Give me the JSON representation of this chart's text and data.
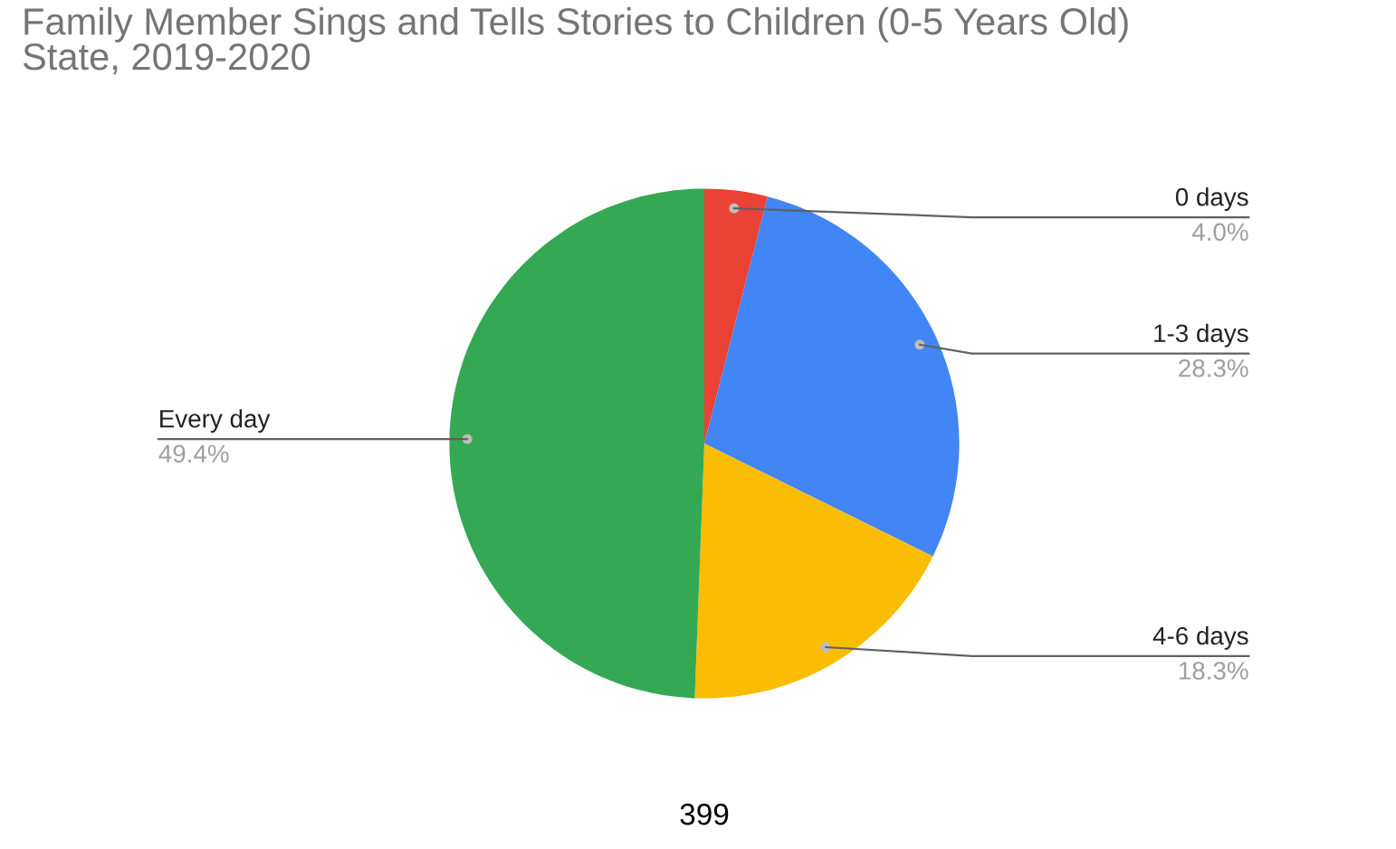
{
  "chart_data": {
    "type": "pie",
    "title": "Family Member Sings and Tells Stories to Children (0-5 Years Old)\nState, 2019-2020",
    "categories": [
      "0 days",
      "1-3 days",
      "4-6 days",
      "Every day"
    ],
    "values": [
      4.0,
      28.3,
      18.3,
      49.4
    ],
    "value_labels": [
      "4.0%",
      "28.3%",
      "18.3%",
      "49.4%"
    ],
    "colors": [
      "#ea4335",
      "#4285f4",
      "#fbbc04",
      "#34a853"
    ],
    "annotations": [
      "399"
    ]
  }
}
